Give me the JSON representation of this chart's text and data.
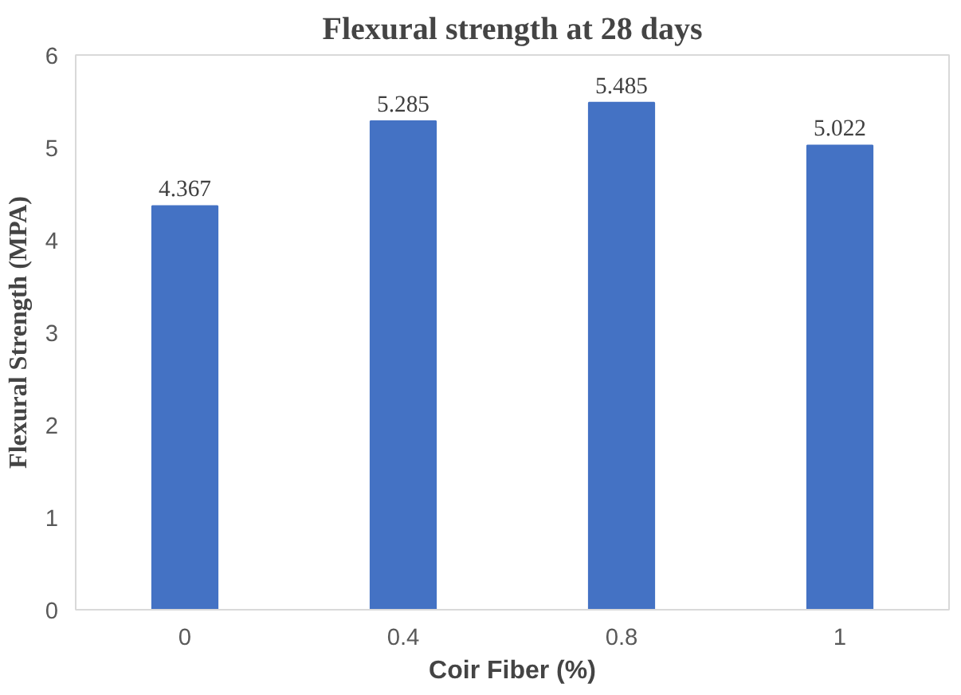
{
  "chart_data": {
    "type": "bar",
    "title": "Flexural strength at 28 days",
    "xlabel": "Coir Fiber (%)",
    "ylabel": "Flexural Strength (MPA)",
    "categories": [
      "0",
      "0.4",
      "0.8",
      "1"
    ],
    "values": [
      4.367,
      5.285,
      5.485,
      5.022
    ],
    "color": "#4472c4",
    "ylim": [
      0,
      6
    ],
    "yticks": [
      0,
      1,
      2,
      3,
      4,
      5,
      6
    ],
    "data_labels": true,
    "grid": false
  }
}
